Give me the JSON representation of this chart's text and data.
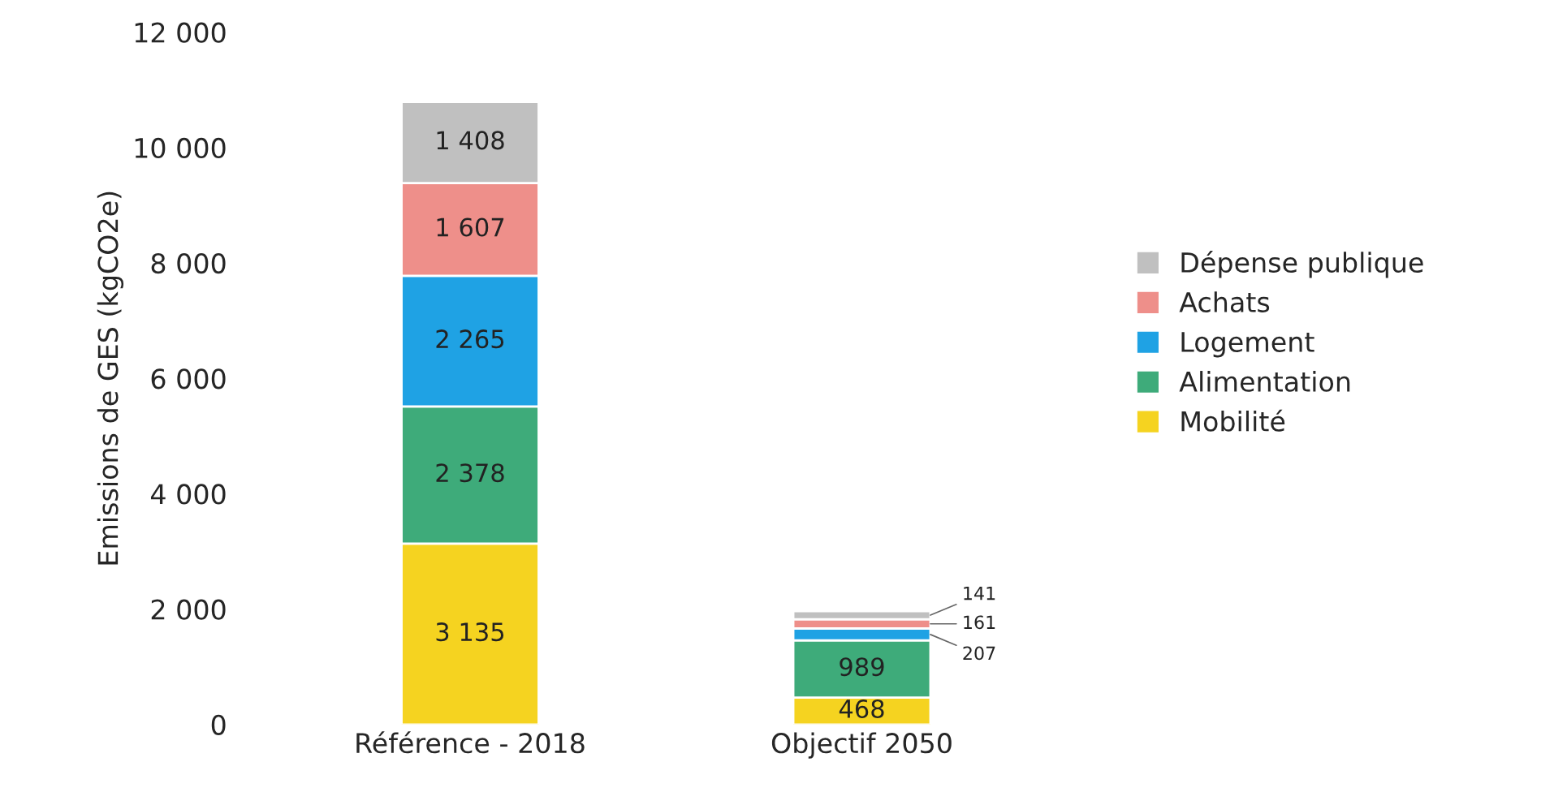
{
  "chart_data": {
    "type": "bar",
    "stacked": true,
    "ylabel": "Emissions de GES (kgCO2e)",
    "categories": [
      "Référence - 2018",
      "Objectif 2050"
    ],
    "series": [
      {
        "name": "Mobilité",
        "color": "#f5d320",
        "values": [
          3135,
          468
        ]
      },
      {
        "name": "Alimentation",
        "color": "#3eab7a",
        "values": [
          2378,
          989
        ]
      },
      {
        "name": "Logement",
        "color": "#1fa2e4",
        "values": [
          2265,
          207
        ]
      },
      {
        "name": "Achats",
        "color": "#ee8f8a",
        "values": [
          1607,
          161
        ]
      },
      {
        "name": "Dépense publique",
        "color": "#c0c0c0",
        "values": [
          1408,
          141
        ]
      }
    ],
    "ylim": [
      0,
      12000
    ],
    "yticks": [
      {
        "value": 0,
        "label": "0"
      },
      {
        "value": 2000,
        "label": "2 000"
      },
      {
        "value": 4000,
        "label": "4 000"
      },
      {
        "value": 6000,
        "label": "6 000"
      },
      {
        "value": 8000,
        "label": "8 000"
      },
      {
        "value": 10000,
        "label": "10 000"
      },
      {
        "value": 12000,
        "label": "12 000"
      }
    ],
    "data_labels": true,
    "legend": "right",
    "grid": false
  }
}
